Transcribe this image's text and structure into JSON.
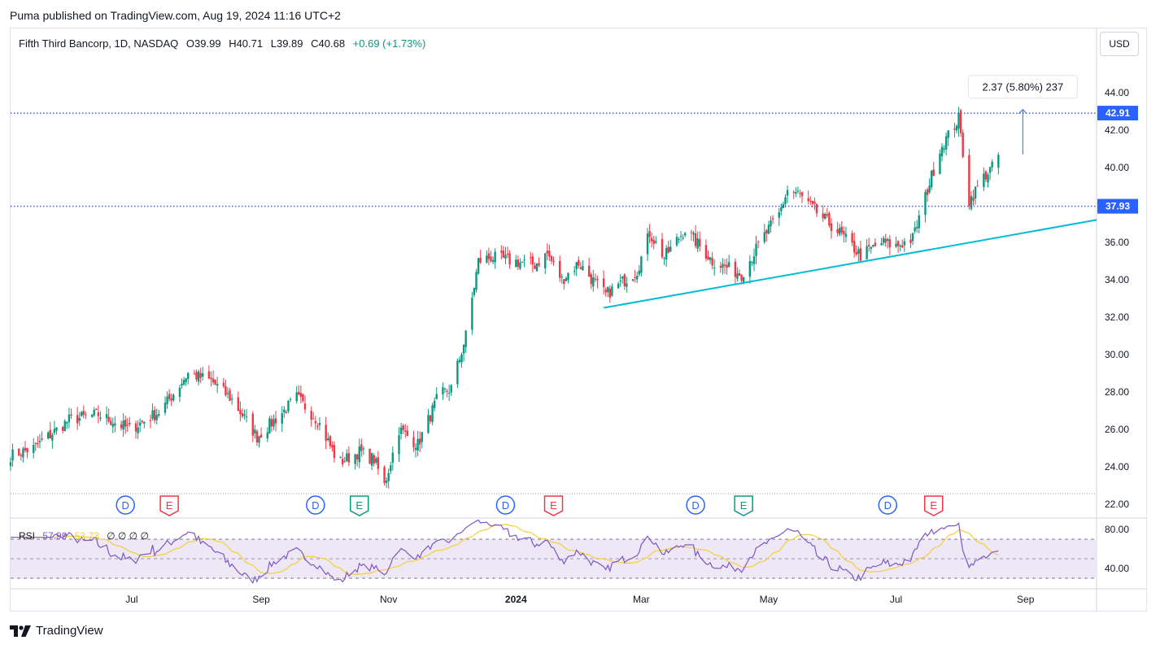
{
  "header": {
    "publisher_line": "Puma published on TradingView.com, Aug 19, 2024 11:16 UTC+2"
  },
  "symbol": {
    "name": "Fifth Third Bancorp, 1D, NASDAQ",
    "open": "O39.99",
    "high": "H40.71",
    "low": "L39.89",
    "close": "C40.68",
    "change": "+0.69 (+1.73%)",
    "change_color": "#089981"
  },
  "currency_label": "USD",
  "footer": {
    "brand": "TradingView",
    "logo_icon": "tradingview-logo-icon"
  },
  "rsi_legend": {
    "label": "RSI",
    "value": "57.99",
    "ma_value": "53.73",
    "extra": "∅ ∅ ∅ ∅",
    "value_color": "#7e57c2",
    "ma_color": "#f7cd3d"
  },
  "colors": {
    "up": "#089981",
    "down": "#f23645",
    "trendline": "#00bcd4",
    "level_line": "#2962ff",
    "rsi_line": "#7e57c2",
    "rsi_ma": "#f7cd3d",
    "rsi_band": "#ede7f6"
  },
  "chart_data": {
    "type": "candlestick",
    "price_axis": {
      "min": 22,
      "max": 44,
      "ticks": [
        "44.00",
        "42.00",
        "40.00",
        "38.00",
        "36.00",
        "34.00",
        "32.00",
        "30.00",
        "28.00",
        "26.00",
        "24.00",
        "22.00"
      ]
    },
    "time_axis": [
      "Jul",
      "Sep",
      "Nov",
      "2024",
      "Mar",
      "May",
      "Jul",
      "Sep"
    ],
    "time_axis_dates": [
      "2023-07-01",
      "2023-09-01",
      "2023-11-01",
      "2024-01-01",
      "2024-03-01",
      "2024-05-01",
      "2024-07-01",
      "2024-09-01"
    ],
    "x_range": [
      "2023-05-04",
      "2024-10-05"
    ],
    "price_levels": [
      {
        "label": "42.91",
        "value": 42.91,
        "style": "dotted"
      },
      {
        "label": "37.93",
        "value": 37.93,
        "style": "dotted"
      }
    ],
    "trendline": {
      "start": [
        "2024-02-12",
        32.5
      ],
      "end": [
        "2024-10-05",
        37.2
      ]
    },
    "measure": {
      "label": "2.37 (5.80%) 237",
      "date": "2024-08-19",
      "from": 40.7,
      "to": 43.1
    },
    "event_markers": [
      {
        "type": "D",
        "date": "2023-06-28"
      },
      {
        "type": "E",
        "date": "2023-07-19"
      },
      {
        "type": "D",
        "date": "2023-09-27"
      },
      {
        "type": "E",
        "date": "2023-10-18"
      },
      {
        "type": "D",
        "date": "2023-12-27"
      },
      {
        "type": "E",
        "date": "2024-01-19"
      },
      {
        "type": "D",
        "date": "2024-03-27"
      },
      {
        "type": "E",
        "date": "2024-04-19"
      },
      {
        "type": "D",
        "date": "2024-06-27"
      },
      {
        "type": "E",
        "date": "2024-07-19"
      }
    ],
    "close_anchors": [
      [
        "2023-05-04",
        24.6
      ],
      [
        "2023-05-15",
        25.0
      ],
      [
        "2023-06-01",
        26.5
      ],
      [
        "2023-06-15",
        26.8
      ],
      [
        "2023-06-30",
        26.0
      ],
      [
        "2023-07-15",
        27.0
      ],
      [
        "2023-07-28",
        29.0
      ],
      [
        "2023-08-08",
        28.6
      ],
      [
        "2023-08-18",
        27.6
      ],
      [
        "2023-08-30",
        25.6
      ],
      [
        "2023-09-12",
        27.0
      ],
      [
        "2023-09-18",
        27.7
      ],
      [
        "2023-09-28",
        26.5
      ],
      [
        "2023-10-08",
        24.2
      ],
      [
        "2023-10-18",
        24.8
      ],
      [
        "2023-10-25",
        24.4
      ],
      [
        "2023-10-30",
        23.0
      ],
      [
        "2023-11-06",
        26.0
      ],
      [
        "2023-11-15",
        25.2
      ],
      [
        "2023-11-25",
        27.8
      ],
      [
        "2023-12-01",
        28.2
      ],
      [
        "2023-12-08",
        31.0
      ],
      [
        "2023-12-14",
        35.0
      ],
      [
        "2023-12-20",
        35.2
      ],
      [
        "2024-01-10",
        34.8
      ],
      [
        "2024-01-16",
        35.4
      ],
      [
        "2024-01-23",
        34.0
      ],
      [
        "2024-01-31",
        34.9
      ],
      [
        "2024-02-08",
        33.8
      ],
      [
        "2024-02-13",
        33.2
      ],
      [
        "2024-02-28",
        34.5
      ],
      [
        "2024-03-05",
        36.5
      ],
      [
        "2024-03-12",
        35.2
      ],
      [
        "2024-03-22",
        36.7
      ],
      [
        "2024-04-04",
        35.0
      ],
      [
        "2024-04-18",
        34.3
      ],
      [
        "2024-04-28",
        36.2
      ],
      [
        "2024-05-06",
        37.5
      ],
      [
        "2024-05-10",
        38.8
      ],
      [
        "2024-05-15",
        38.6
      ],
      [
        "2024-05-24",
        37.6
      ],
      [
        "2024-06-04",
        36.5
      ],
      [
        "2024-06-14",
        35.3
      ],
      [
        "2024-06-24",
        36.0
      ],
      [
        "2024-07-01",
        35.8
      ],
      [
        "2024-07-09",
        36.2
      ],
      [
        "2024-07-16",
        38.8
      ],
      [
        "2024-07-22",
        41.0
      ],
      [
        "2024-07-31",
        42.6
      ],
      [
        "2024-08-02",
        40.8
      ],
      [
        "2024-08-05",
        38.2
      ],
      [
        "2024-08-12",
        39.5
      ],
      [
        "2024-08-16",
        39.99
      ],
      [
        "2024-08-19",
        40.68
      ]
    ],
    "rsi": {
      "axis_ticks": [
        "80.00",
        "40.00"
      ],
      "range": [
        20,
        90
      ],
      "band": [
        30,
        70
      ],
      "current": 57.99,
      "ma_current": 53.73
    }
  }
}
